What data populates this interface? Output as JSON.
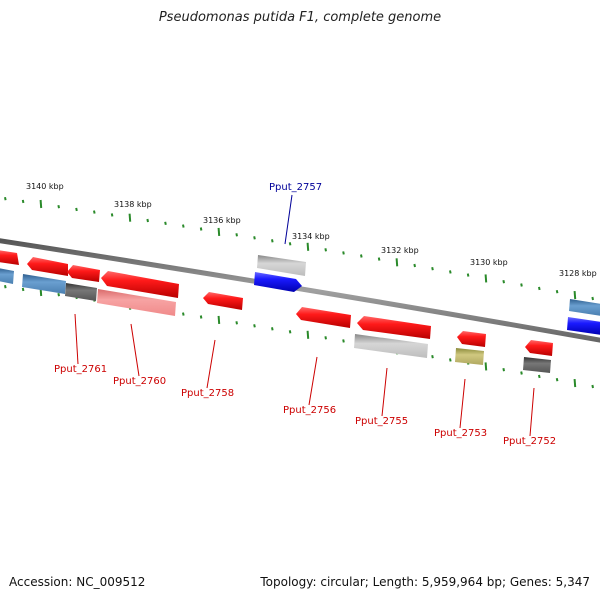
{
  "title": "Pseudomonas putida F1, complete genome",
  "footer": {
    "accession": "Accession: NC_009512",
    "summary": "Topology: circular; Length: 5,959,964 bp; Genes: 5,347"
  },
  "colors": {
    "backbone": "#777777",
    "tick": "#2a8a2a",
    "red_gene": "#ee1111",
    "blue_gene": "#1111ee",
    "red_label": "#cc0000",
    "blue_label": "#000099"
  },
  "scale_labels": [
    "3140 kbp",
    "3138 kbp",
    "3136 kbp",
    "3134 kbp",
    "3132 kbp",
    "3130 kbp",
    "3128 kbp"
  ],
  "gene_labels": {
    "top": [
      {
        "name": "Pput_2757",
        "strand": "forward"
      }
    ],
    "bottom": [
      {
        "name": "Pput_2761",
        "strand": "reverse"
      },
      {
        "name": "Pput_2760",
        "strand": "reverse"
      },
      {
        "name": "Pput_2758",
        "strand": "reverse"
      },
      {
        "name": "Pput_2756",
        "strand": "reverse"
      },
      {
        "name": "Pput_2755",
        "strand": "reverse"
      },
      {
        "name": "Pput_2753",
        "strand": "reverse"
      },
      {
        "name": "Pput_2752",
        "strand": "reverse"
      }
    ]
  }
}
